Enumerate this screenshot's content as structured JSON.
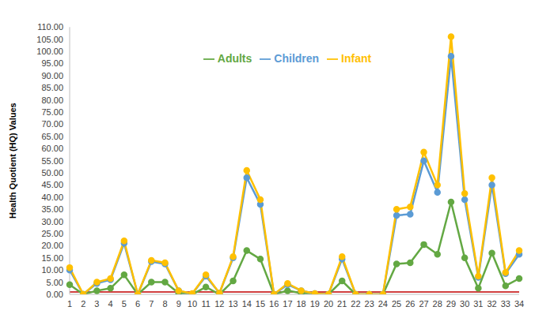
{
  "chart_data": {
    "type": "line",
    "y_label": "Health Quotient (HQ) Values",
    "categories": [
      "1",
      "2",
      "3",
      "4",
      "5",
      "6",
      "7",
      "8",
      "9",
      "10",
      "11",
      "12",
      "13",
      "14",
      "15",
      "16",
      "17",
      "18",
      "19",
      "20",
      "21",
      "22",
      "23",
      "24",
      "25",
      "26",
      "27",
      "28",
      "29",
      "30",
      "31",
      "32",
      "33",
      "34"
    ],
    "series": [
      {
        "name": "Adults",
        "color": "#63a843",
        "marker": "circle",
        "values": [
          4,
          0,
          1.5,
          2.5,
          8,
          0,
          5,
          5,
          0.5,
          0,
          3,
          0,
          5.5,
          18,
          14.5,
          0,
          1.5,
          0.5,
          0,
          0,
          5.5,
          0,
          0,
          0,
          12.5,
          13,
          20.5,
          16.5,
          38,
          15,
          2.5,
          17,
          3.5,
          6.5
        ]
      },
      {
        "name": "Children",
        "color": "#5b9bd5",
        "marker": "circle",
        "values": [
          10,
          0,
          4.5,
          6,
          21,
          0,
          13.5,
          12.5,
          1.5,
          0.2,
          7.5,
          0.5,
          15,
          48,
          37,
          0,
          4,
          1.5,
          0.3,
          0,
          14.5,
          0,
          0,
          0,
          32.5,
          33,
          55,
          42,
          98,
          39,
          7,
          45,
          8.5,
          16.5
        ]
      },
      {
        "name": "Infant",
        "color": "#ffc000",
        "marker": "circle",
        "values": [
          11,
          0,
          5,
          6.5,
          22,
          0,
          14,
          13,
          1.5,
          0.3,
          8,
          0.5,
          15.5,
          51,
          39,
          0,
          4.5,
          1.5,
          0.3,
          0,
          15.5,
          0,
          0,
          0,
          35,
          36,
          58.5,
          45,
          106,
          41.5,
          7.5,
          48,
          9,
          18
        ]
      }
    ],
    "threshold": 1,
    "threshold_color": "#c00000",
    "ylim": [
      0,
      110
    ],
    "yticks": [
      {
        "value": 0,
        "label": "0.00"
      },
      {
        "value": 5,
        "label": "5.00"
      },
      {
        "value": 10,
        "label": "10.00"
      },
      {
        "value": 15,
        "label": "15.00"
      },
      {
        "value": 20,
        "label": "20.00"
      },
      {
        "value": 25,
        "label": "25.00"
      },
      {
        "value": 30,
        "label": "30.00"
      },
      {
        "value": 35,
        "label": "35.00"
      },
      {
        "value": 40,
        "label": "40.00"
      },
      {
        "value": 45,
        "label": "45.00"
      },
      {
        "value": 50,
        "label": "50.00"
      },
      {
        "value": 55,
        "label": "55.00"
      },
      {
        "value": 60,
        "label": "60.00"
      },
      {
        "value": 65,
        "label": "65.00"
      },
      {
        "value": 70,
        "label": "70.00"
      },
      {
        "value": 75,
        "label": "75.00"
      },
      {
        "value": 80,
        "label": "80.00"
      },
      {
        "value": 85,
        "label": "85.00"
      },
      {
        "value": 90,
        "label": "90.00"
      },
      {
        "value": 95,
        "label": "95.00"
      },
      {
        "value": 100,
        "label": "100.00"
      },
      {
        "value": 105,
        "label": "105.00"
      },
      {
        "value": 110,
        "label": "110.00"
      }
    ],
    "grid": false,
    "legend": "top"
  }
}
